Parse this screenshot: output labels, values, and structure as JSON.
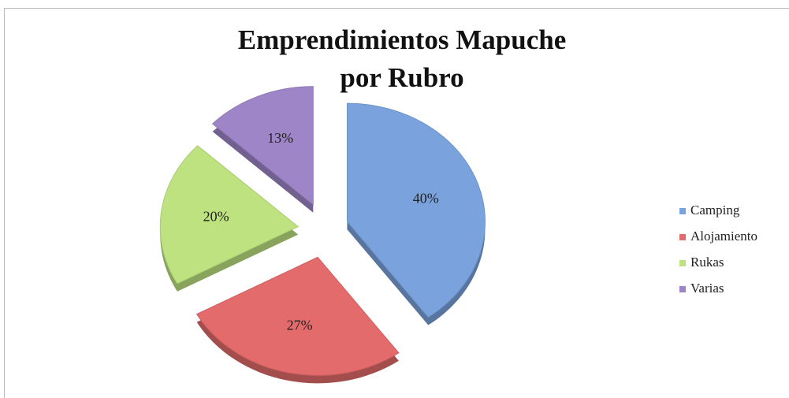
{
  "chart_data": {
    "type": "pie",
    "title": [
      "Emprendimientos Mapuche",
      "por Rubro"
    ],
    "categories": [
      "Camping",
      "Alojamiento",
      "Rukas",
      "Varias"
    ],
    "values": [
      40,
      27,
      20,
      13
    ],
    "value_labels": [
      "40%",
      "27%",
      "20%",
      "13%"
    ],
    "colors": [
      "#7aa3dd",
      "#e36b6b",
      "#bde27f",
      "#9e85c8"
    ],
    "legend": "right"
  }
}
